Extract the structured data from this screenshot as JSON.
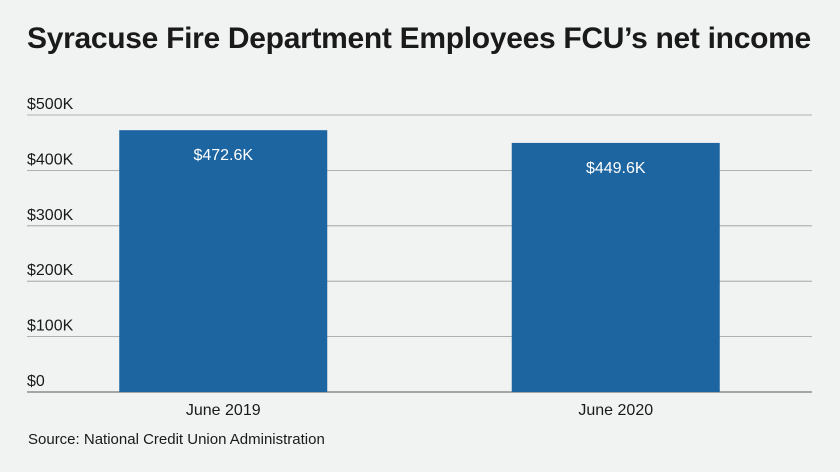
{
  "chart_data": {
    "type": "bar",
    "title": "Syracuse Fire Department Employees FCU’s net income",
    "categories": [
      "June 2019",
      "June 2020"
    ],
    "values": [
      472.6,
      449.6
    ],
    "data_labels": [
      "$472.6K",
      "$449.6K"
    ],
    "ylim": [
      0,
      500
    ],
    "yticks": [
      0,
      100,
      200,
      300,
      400,
      500
    ],
    "ytick_labels": [
      "$0",
      "$100K",
      "$200K",
      "$300K",
      "$400K",
      "$500K"
    ],
    "xlabel": "",
    "ylabel": "",
    "grid": true,
    "bar_color": "#1c65a0"
  },
  "source": "Source: National Credit Union Administration"
}
